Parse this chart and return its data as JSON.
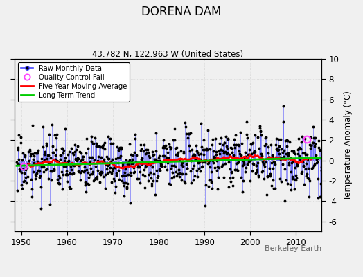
{
  "title": "DORENA DAM",
  "subtitle": "43.782 N, 122.963 W (United States)",
  "ylabel": "Temperature Anomaly (°C)",
  "xlabel_note": "Berkeley Earth",
  "xlim": [
    1948.5,
    2015.5
  ],
  "ylim": [
    -7,
    10
  ],
  "yticks": [
    -6,
    -4,
    -2,
    0,
    2,
    4,
    6,
    8,
    10
  ],
  "xticks": [
    1950,
    1960,
    1970,
    1980,
    1990,
    2000,
    2010
  ],
  "line_color": "#4444ff",
  "dot_color": "#000000",
  "moving_avg_color": "#ff0000",
  "trend_color": "#00cc00",
  "qc_fail_color": "#ff44ff",
  "background_color": "#f0f0f0",
  "trend_slope": 0.012,
  "trend_intercept": -0.15,
  "noise_std": 1.4,
  "seed": 17,
  "qc_years": [
    1950.5,
    2012.3
  ],
  "qc_values": [
    -0.6,
    2.1
  ]
}
